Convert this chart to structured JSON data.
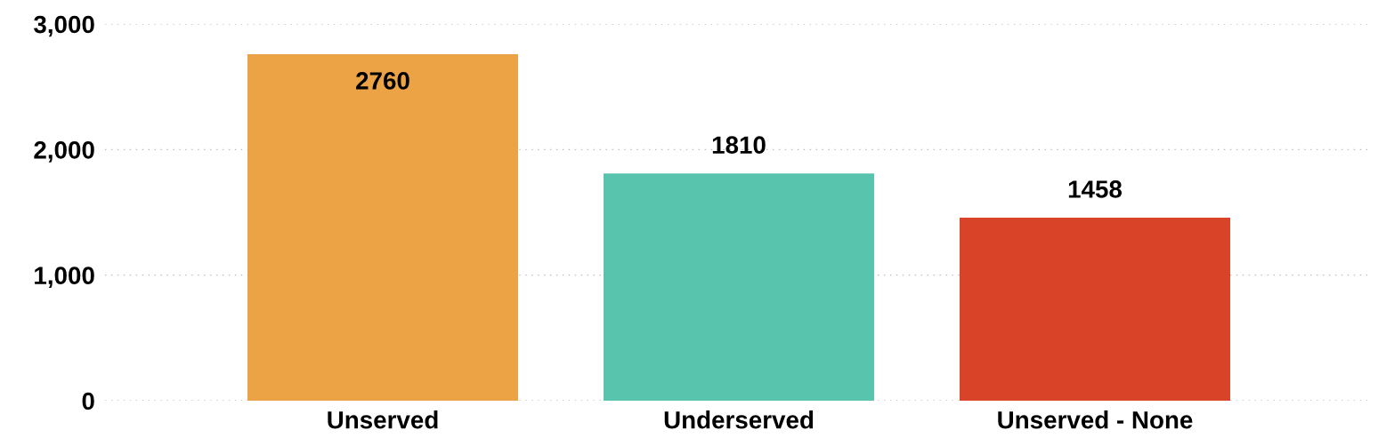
{
  "chart_data": {
    "type": "bar",
    "categories": [
      "Unserved",
      "Underserved",
      "Unserved - None"
    ],
    "values": [
      2760,
      1810,
      1458
    ],
    "colors": [
      "#eca346",
      "#58c4ae",
      "#d94428"
    ],
    "ylim": [
      0,
      3000
    ],
    "yticks": [
      {
        "value": 0,
        "label": "0"
      },
      {
        "value": 1000,
        "label": "1,000"
      },
      {
        "value": 2000,
        "label": "2,000"
      },
      {
        "value": 3000,
        "label": "3,000"
      }
    ],
    "grid": "y",
    "data_labels": true
  }
}
